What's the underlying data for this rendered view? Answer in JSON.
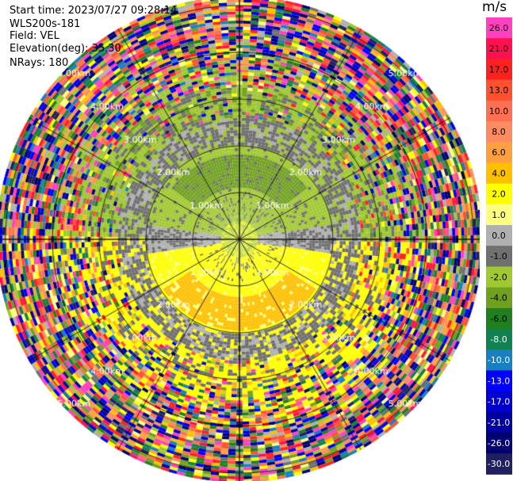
{
  "header": {
    "start_time": "Start time: 2023/07/27 09:28:14",
    "instrument": "WLS200s-181",
    "field": "Field: VEL",
    "elevation": "Elevation(deg): 35.30",
    "nrays": "NRays: 180"
  },
  "chart_data": {
    "type": "heatmap",
    "projection": "polar-ppi",
    "field": "VEL",
    "units": "m/s",
    "elevation_deg": 35.3,
    "n_rays": 180,
    "range_rings_km": [
      1,
      2,
      3,
      4,
      5
    ],
    "range_ring_labels": [
      "1.00km",
      "2.00km",
      "3.00km",
      "4.00km",
      "5.00km"
    ],
    "max_range_km": 5.2,
    "spokes_deg": [
      0,
      30,
      60,
      90,
      120,
      150,
      180,
      210,
      240,
      270,
      300,
      330
    ],
    "colorbar": {
      "unit_label": "m/s",
      "ticks": [
        "26.0",
        "21.0",
        "17.0",
        "13.0",
        "10.0",
        "8.0",
        "6.0",
        "4.0",
        "2.0",
        "1.0",
        "0.0",
        "-1.0",
        "-2.0",
        "-4.0",
        "-6.0",
        "-8.0",
        "-10.0",
        "-13.0",
        "-17.0",
        "-21.0",
        "-26.0",
        "-30.0"
      ],
      "colors": [
        "#ff40c0",
        "#ff1050",
        "#ff2020",
        "#ff5030",
        "#ff7050",
        "#ff8c60",
        "#ffa040",
        "#ffc000",
        "#ffff00",
        "#ffff80",
        "#b0b0b0",
        "#707070",
        "#a0c830",
        "#70a020",
        "#208020",
        "#108050",
        "#1880c0",
        "#0000ff",
        "#0000d0",
        "#0000a0",
        "#000070",
        "#202060"
      ]
    },
    "velocity_pattern": {
      "description_levels": {
        "near_0_1km": "0.0",
        "north_1_2km": "-4.0",
        "south_1_2km": "2.0",
        "south_core": "4.0",
        "ring_2_3km": "0.0",
        "outer_3_5km": "noise"
      }
    }
  }
}
